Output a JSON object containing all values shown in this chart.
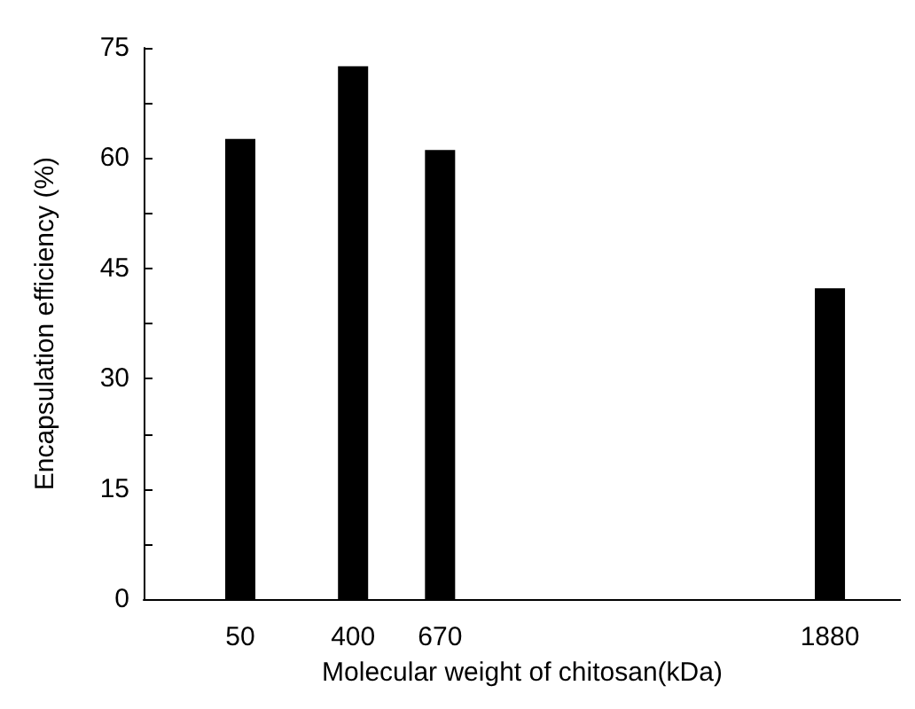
{
  "chart_data": {
    "type": "bar",
    "xlabel": "Molecular weight of chitosan(kDa)",
    "ylabel": "Encapsulation efficiency (%)",
    "x": [
      50,
      400,
      670,
      1880
    ],
    "values": [
      62.6,
      72.5,
      61.1,
      42.3
    ],
    "color": "#000000",
    "xlim": [
      -250,
      2100
    ],
    "xticks": [
      50,
      400,
      670,
      1880
    ],
    "ylim": [
      0,
      75
    ],
    "yticks": [
      0,
      {
        "value": 7.5,
        "label": null
      },
      15,
      {
        "value": 22.5,
        "label": null
      },
      30,
      {
        "value": 37.5,
        "label": null
      },
      45,
      {
        "value": 52.5,
        "label": null
      },
      60,
      {
        "value": 67.5,
        "label": null
      },
      75
    ],
    "grid": false
  }
}
